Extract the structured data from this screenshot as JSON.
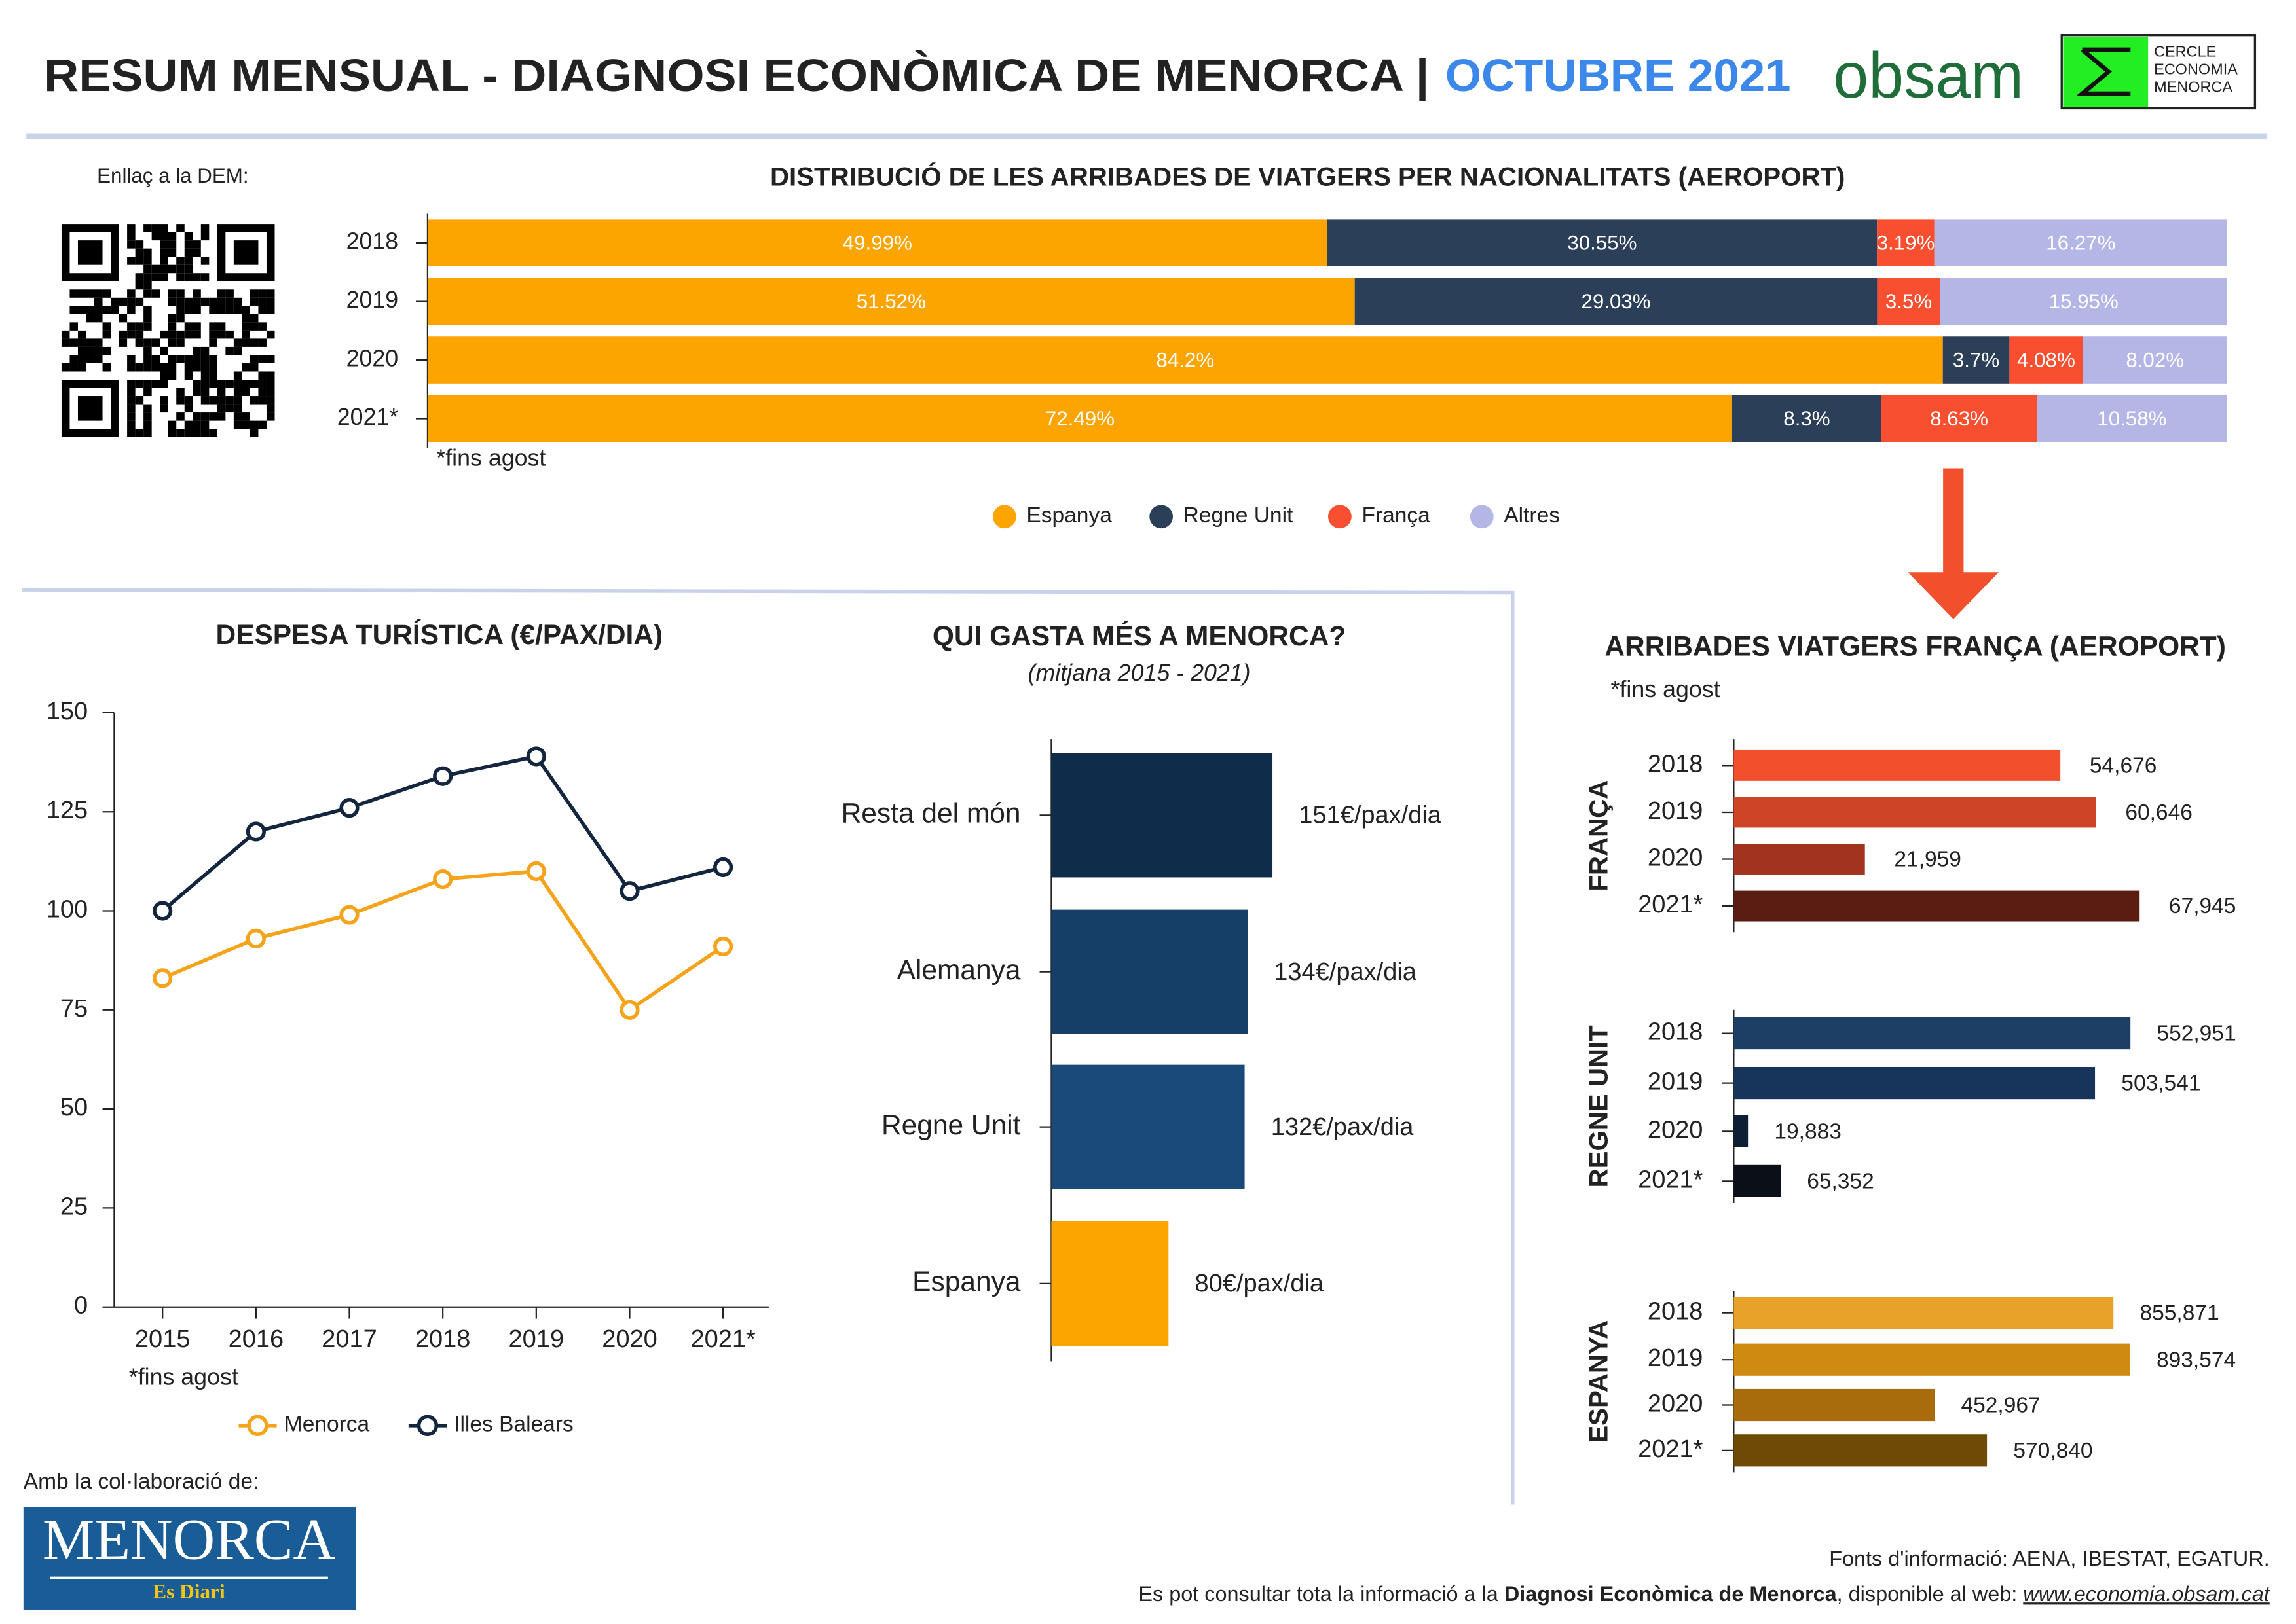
{
  "header": {
    "title": "RESUM MENSUAL - DIAGNOSI ECONÒMICA DE MENORCA |",
    "month": "OCTUBRE 2021",
    "logo": "obsam",
    "logo2": [
      "CERCLE",
      "ECONOMIA",
      "MENORCA"
    ]
  },
  "qr_label": "Enllaç a la DEM:",
  "chart_data": [
    {
      "type": "stacked_bar_h",
      "title": "DISTRIBUCIÓ DE LES ARRIBADES DE VIATGERS PER NACIONALITATS (AEROPORT)",
      "categories": [
        "2018",
        "2019",
        "2020",
        "2021*"
      ],
      "note": "*fins agost",
      "xlim": [
        0,
        100
      ],
      "series": [
        {
          "name": "Espanya",
          "color": "#fca400",
          "values": [
            49.99,
            51.52,
            84.2,
            72.49
          ],
          "value_labels": [
            "49.99%",
            "51.52%",
            "84.2%",
            "72.49%"
          ]
        },
        {
          "name": "Regne Unit",
          "color": "#2b3f58",
          "values": [
            30.55,
            29.03,
            3.7,
            8.3
          ],
          "value_labels": [
            "30.55%",
            "29.03%",
            "3.7%",
            "8.3%"
          ]
        },
        {
          "name": "França",
          "color": "#f74f2f",
          "values": [
            3.19,
            3.5,
            4.08,
            8.63
          ],
          "value_labels": [
            "3.19%",
            "3.5%",
            "4.08%",
            "8.63%"
          ]
        },
        {
          "name": "Altres",
          "color": "#b4b6e6",
          "values": [
            16.27,
            15.95,
            8.02,
            10.58
          ],
          "value_labels": [
            "16.27%",
            "15.95%",
            "8.02%",
            "10.58%"
          ]
        }
      ]
    },
    {
      "type": "line",
      "title": "DESPESA TURÍSTICA (€/PAX/DIA)",
      "note": "*fins agost",
      "categories": [
        "2015",
        "2016",
        "2017",
        "2018",
        "2019",
        "2020",
        "2021*"
      ],
      "ylim": [
        0,
        150
      ],
      "yticks": [
        0,
        25,
        50,
        75,
        100,
        125,
        150
      ],
      "series": [
        {
          "name": "Menorca",
          "color": "#f5a31a",
          "values": [
            83,
            93,
            99,
            108,
            110,
            75,
            91
          ]
        },
        {
          "name": "Illes Balears",
          "color": "#13263e",
          "values": [
            100,
            120,
            126,
            134,
            139,
            105,
            111
          ]
        }
      ]
    },
    {
      "type": "bar_h",
      "title": "QUI GASTA MÉS A MENORCA?",
      "subtitle": "(mitjana 2015 - 2021)",
      "categories": [
        "Resta del món",
        "Alemanya",
        "Regne Unit",
        "Espanya"
      ],
      "values": [
        151,
        134,
        132,
        80
      ],
      "value_labels": [
        "151€/pax/dia",
        "134€/pax/dia",
        "132€/pax/dia",
        "80€/pax/dia"
      ],
      "colors": [
        "#0f2d4a",
        "#153f66",
        "#1a4a7a",
        "#fca400"
      ],
      "xlim": [
        0,
        300
      ]
    },
    {
      "type": "bar_h",
      "ylabel": "FRANÇA",
      "categories": [
        "2018",
        "2019",
        "2020",
        "2021*"
      ],
      "values": [
        54676,
        60646,
        21959,
        67945
      ],
      "value_labels": [
        "54,676",
        "60,646",
        "21,959",
        "67,945"
      ],
      "colors": [
        "#f24f2c",
        "#cd4427",
        "#a2341f",
        "#5a1d11"
      ],
      "xlim": [
        0,
        75000
      ]
    },
    {
      "type": "bar_h",
      "ylabel": "REGNE UNIT",
      "categories": [
        "2018",
        "2019",
        "2020",
        "2021*"
      ],
      "values": [
        552951,
        503541,
        19883,
        65352
      ],
      "value_labels": [
        "552,951",
        "503,541",
        "19,883",
        "65,352"
      ],
      "colors": [
        "#1d3f66",
        "#17345a",
        "#0e1f33",
        "#0a0f18"
      ],
      "xlim": [
        0,
        600000
      ]
    },
    {
      "type": "bar_h",
      "ylabel": "ESPANYA",
      "categories": [
        "2018",
        "2019",
        "2020",
        "2021*"
      ],
      "values": [
        855871,
        893574,
        452967,
        570840
      ],
      "value_labels": [
        "855,871",
        "893,574",
        "452,967",
        "570,840"
      ],
      "colors": [
        "#e8a22a",
        "#cf8a12",
        "#a86d0a",
        "#6e4a06"
      ],
      "xlim": [
        0,
        1000000
      ]
    }
  ],
  "arrivals_section": {
    "title": "ARRIBADES VIATGERS FRANÇA (AEROPORT)",
    "note": "*fins agost"
  },
  "footer": {
    "collab": "Amb la col·laboració de:",
    "partner": "MENORCA",
    "partner_sub": "Es Diari",
    "sources": "Fonts d'informació: AENA, IBESTAT, EGATUR.",
    "info": [
      "Es pot consultar tota la informació a la ",
      "Diagnosi Econòmica de Menorca",
      ", disponible al web: ",
      "www.economia.obsam.cat"
    ]
  }
}
